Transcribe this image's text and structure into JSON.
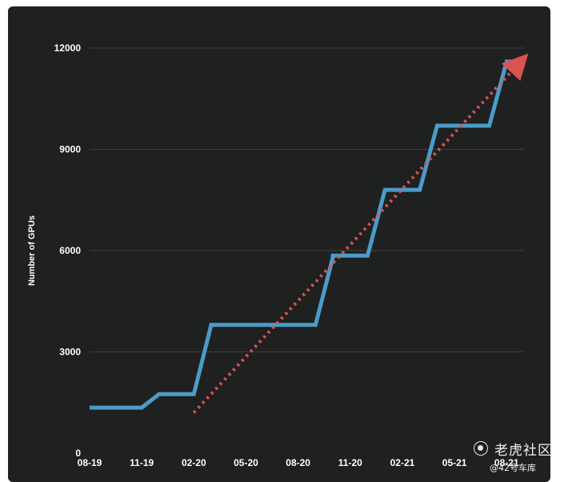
{
  "chart_data": {
    "type": "line",
    "title": "",
    "xlabel": "",
    "ylabel": "Number of GPUs",
    "ylim": [
      0,
      12000
    ],
    "yticks": [
      "0",
      "3000",
      "6000",
      "9000",
      "12000"
    ],
    "xticks": [
      "08-19",
      "11-19",
      "02-20",
      "05-20",
      "08-20",
      "11-20",
      "02-21",
      "05-21",
      "08-21"
    ],
    "grid": "horizontal",
    "series": [
      {
        "name": "",
        "color": "#4a9cc9",
        "style": "solid",
        "x": [
          "2019-08",
          "2019-11",
          "2019-12",
          "2020-02",
          "2020-03",
          "2020-09",
          "2020-10",
          "2020-10",
          "2020-12",
          "2021-01",
          "2021-02",
          "2021-03",
          "2021-04",
          "2021-07",
          "2021-08",
          "2021-09"
        ],
        "values": [
          1350,
          1350,
          1750,
          1750,
          3800,
          3800,
          5800,
          5850,
          5850,
          7800,
          7800,
          7800,
          9700,
          9700,
          11600,
          11600
        ]
      },
      {
        "name": "",
        "color": "#d9534f",
        "style": "dotted-arrow",
        "x": [
          "2020-02",
          "2021-09"
        ],
        "values": [
          1200,
          11700
        ]
      }
    ]
  },
  "watermark": {
    "brand": "老虎社区",
    "handle": "@42号车库",
    "icon": "watermark-logo-icon"
  }
}
